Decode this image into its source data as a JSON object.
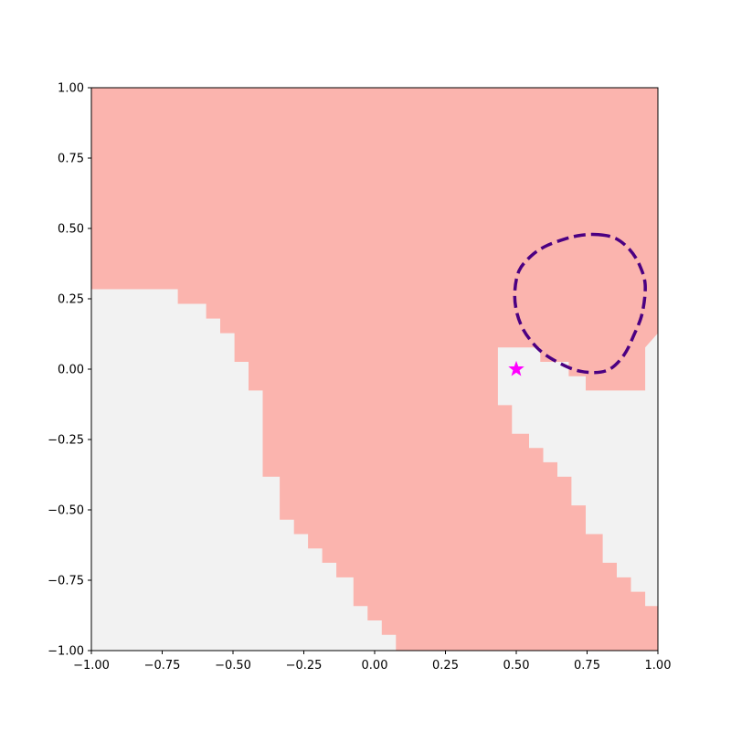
{
  "chart_data": {
    "type": "heatmap",
    "title": "",
    "xlabel": "",
    "ylabel": "",
    "xlim": [
      -1.0,
      1.0
    ],
    "ylim": [
      -1.0,
      1.0
    ],
    "grid": false,
    "x_ticks": [
      "−1.00",
      "−0.75",
      "−0.50",
      "−0.25",
      "0.00",
      "0.25",
      "0.50",
      "0.75",
      "1.00"
    ],
    "y_ticks": [
      "−1.00",
      "−0.75",
      "−0.50",
      "−0.25",
      "0.00",
      "0.25",
      "0.50",
      "0.75",
      "1.00"
    ],
    "x_tick_values": [
      -1.0,
      -0.75,
      -0.5,
      -0.25,
      0.0,
      0.25,
      0.5,
      0.75,
      1.0
    ],
    "y_tick_values": [
      -1.0,
      -0.75,
      -0.5,
      -0.25,
      0.0,
      0.25,
      0.5,
      0.75,
      1.0
    ],
    "colors": {
      "region_a": "#fbb4ae",
      "region_b": "#f2f2f2",
      "contour": "#4b0082",
      "marker": "#ff00ff"
    },
    "region_b_areas": [
      {
        "name": "lower-left",
        "polygon": [
          [
            -1.0,
            0.284
          ],
          [
            -0.695,
            0.284
          ],
          [
            -0.695,
            0.232
          ],
          [
            -0.595,
            0.232
          ],
          [
            -0.595,
            0.18
          ],
          [
            -0.545,
            0.18
          ],
          [
            -0.545,
            0.128
          ],
          [
            -0.495,
            0.128
          ],
          [
            -0.495,
            0.026
          ],
          [
            -0.445,
            0.026
          ],
          [
            -0.445,
            -0.076
          ],
          [
            -0.395,
            -0.076
          ],
          [
            -0.395,
            -0.382
          ],
          [
            -0.335,
            -0.382
          ],
          [
            -0.335,
            -0.535
          ],
          [
            -0.285,
            -0.535
          ],
          [
            -0.285,
            -0.586
          ],
          [
            -0.235,
            -0.586
          ],
          [
            -0.235,
            -0.637
          ],
          [
            -0.185,
            -0.637
          ],
          [
            -0.185,
            -0.688
          ],
          [
            -0.135,
            -0.688
          ],
          [
            -0.135,
            -0.74
          ],
          [
            -0.075,
            -0.74
          ],
          [
            -0.075,
            -0.842
          ],
          [
            -0.025,
            -0.842
          ],
          [
            -0.025,
            -0.893
          ],
          [
            0.025,
            -0.893
          ],
          [
            0.025,
            -0.944
          ],
          [
            0.075,
            -0.944
          ],
          [
            0.075,
            -1.0
          ],
          [
            -1.0,
            -1.0
          ]
        ]
      },
      {
        "name": "right",
        "polygon": [
          [
            0.435,
            0.077
          ],
          [
            0.585,
            0.077
          ],
          [
            0.585,
            0.026
          ],
          [
            0.635,
            0.026
          ],
          [
            0.635,
            0.026
          ],
          [
            0.685,
            0.026
          ],
          [
            0.685,
            -0.025
          ],
          [
            0.745,
            -0.025
          ],
          [
            0.745,
            -0.076
          ],
          [
            0.955,
            -0.076
          ],
          [
            0.955,
            0.026
          ],
          [
            0.955,
            0.077
          ],
          [
            0.955,
            0.077
          ],
          [
            1.0,
            0.128
          ],
          [
            1.0,
            -0.842
          ],
          [
            0.955,
            -0.842
          ],
          [
            0.955,
            -0.791
          ],
          [
            0.905,
            -0.791
          ],
          [
            0.905,
            -0.74
          ],
          [
            0.855,
            -0.74
          ],
          [
            0.855,
            -0.688
          ],
          [
            0.805,
            -0.688
          ],
          [
            0.805,
            -0.586
          ],
          [
            0.745,
            -0.586
          ],
          [
            0.745,
            -0.484
          ],
          [
            0.695,
            -0.484
          ],
          [
            0.695,
            -0.382
          ],
          [
            0.645,
            -0.382
          ],
          [
            0.645,
            -0.331
          ],
          [
            0.595,
            -0.331
          ],
          [
            0.595,
            -0.28
          ],
          [
            0.545,
            -0.28
          ],
          [
            0.545,
            -0.23
          ],
          [
            0.485,
            -0.23
          ],
          [
            0.485,
            -0.128
          ],
          [
            0.435,
            -0.128
          ]
        ]
      }
    ],
    "contour": {
      "style": "dashed",
      "points": [
        [
          0.79,
          0.478
        ],
        [
          0.85,
          0.465
        ],
        [
          0.9,
          0.425
        ],
        [
          0.935,
          0.37
        ],
        [
          0.955,
          0.3
        ],
        [
          0.945,
          0.2
        ],
        [
          0.915,
          0.12
        ],
        [
          0.88,
          0.05
        ],
        [
          0.83,
          0.0
        ],
        [
          0.77,
          -0.012
        ],
        [
          0.7,
          0.0
        ],
        [
          0.62,
          0.04
        ],
        [
          0.57,
          0.08
        ],
        [
          0.525,
          0.14
        ],
        [
          0.5,
          0.21
        ],
        [
          0.495,
          0.28
        ],
        [
          0.51,
          0.35
        ],
        [
          0.55,
          0.4
        ],
        [
          0.6,
          0.435
        ],
        [
          0.67,
          0.462
        ],
        [
          0.73,
          0.476
        ],
        [
          0.79,
          0.478
        ]
      ]
    },
    "marker": {
      "shape": "star",
      "x": 0.5,
      "y": 0.0
    }
  }
}
